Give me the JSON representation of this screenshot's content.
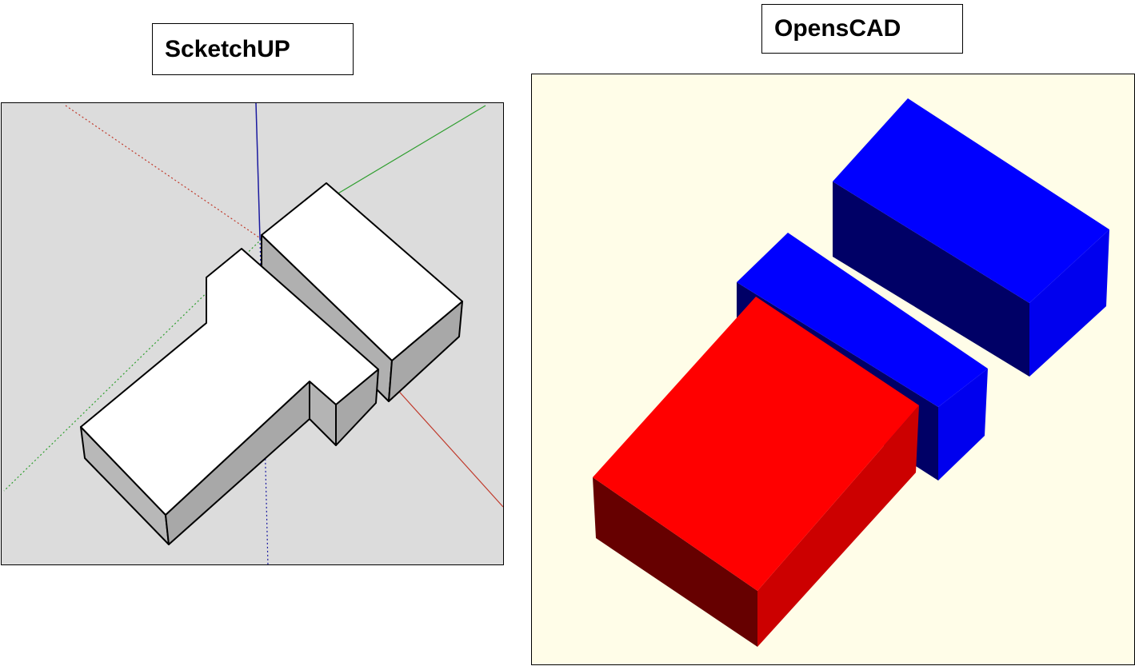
{
  "sketchup": {
    "label": "ScketchUP",
    "background": "#dcdcdc",
    "axis_colors": {
      "red": "#c0392b",
      "green": "#2e9e2e",
      "blue": "#1a1aa0"
    },
    "model_face_color": "#ffffff",
    "model_side_color": "#b0b0b0"
  },
  "openscad": {
    "label": "OpensCAD",
    "background": "#fffde8",
    "box_colors": {
      "red_top": "#ff0000",
      "red_right": "#cc0000",
      "red_front": "#660000",
      "blue_top": "#0000ff",
      "blue_right": "#0000ee",
      "blue_front": "#000066"
    }
  }
}
